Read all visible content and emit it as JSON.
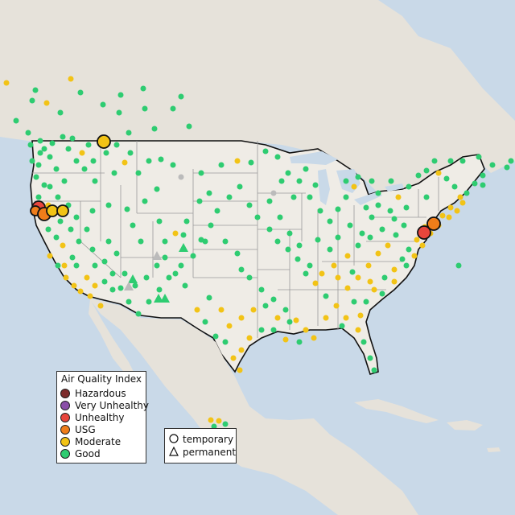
{
  "colors": {
    "water": "#c9d9e8",
    "land": "#efece6",
    "land_other": "#e6e2da",
    "border": "#111111",
    "state_line": "#9a9a9a",
    "Hazardous": "#7e2d2d",
    "Very Unhealthy": "#8a4fa8",
    "Unhealthy": "#e8453c",
    "USG": "#ef7d1a",
    "Moderate": "#f2c316",
    "Good": "#2ecc71",
    "no_data": "#bbbbbb"
  },
  "legend": {
    "title": "Air Quality Index",
    "categories": [
      "Hazardous",
      "Very Unhealthy",
      "Unhealthy",
      "USG",
      "Moderate",
      "Good"
    ]
  },
  "monitor_legend": {
    "items": [
      {
        "shape": "circle",
        "label": "temporary"
      },
      {
        "shape": "triangle",
        "label": "permanent"
      }
    ]
  }
}
